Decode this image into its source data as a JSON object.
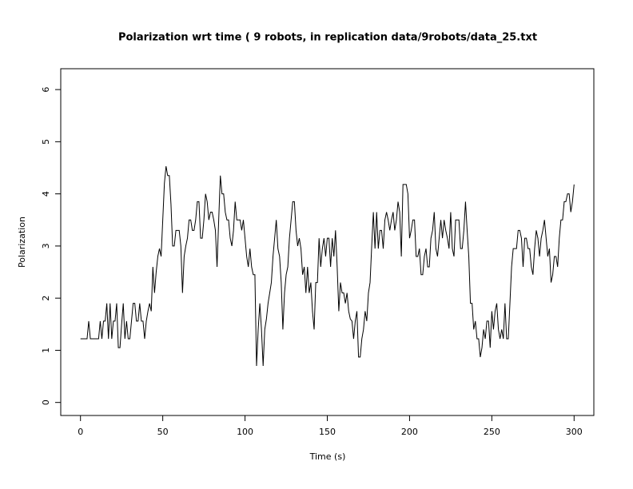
{
  "chart_data": {
    "type": "line",
    "title": "Polarization wrt time ( 9 robots, in replication  data/9robots/data_25.txt",
    "x_label": "Time (s)",
    "y_label": "Polarization",
    "xlim": [
      -12,
      312
    ],
    "ylim": [
      -0.25,
      6.4
    ],
    "xticks": [
      0,
      50,
      100,
      150,
      200,
      250,
      300
    ],
    "yticks": [
      0,
      1,
      2,
      3,
      4,
      5,
      6
    ],
    "grid": false,
    "series": [
      {
        "color": "#000000",
        "x": [
          0,
          1,
          2,
          3,
          4,
          5,
          6,
          7,
          8,
          9,
          10,
          11,
          12,
          13,
          14,
          15,
          16,
          17,
          18,
          19,
          20,
          21,
          22,
          23,
          24,
          25,
          26,
          27,
          28,
          29,
          30,
          31,
          32,
          33,
          34,
          35,
          36,
          37,
          38,
          39,
          40,
          41,
          42,
          43,
          44,
          45,
          46,
          47,
          48,
          49,
          50,
          51,
          52,
          53,
          54,
          55,
          56,
          57,
          58,
          59,
          60,
          61,
          62,
          63,
          64,
          65,
          66,
          67,
          68,
          69,
          70,
          71,
          72,
          73,
          74,
          75,
          76,
          77,
          78,
          79,
          80,
          81,
          82,
          83,
          84,
          85,
          86,
          87,
          88,
          89,
          90,
          91,
          92,
          93,
          94,
          95,
          96,
          97,
          98,
          99,
          100,
          101,
          102,
          103,
          104,
          105,
          106,
          107,
          108,
          109,
          110,
          111,
          112,
          113,
          114,
          115,
          116,
          117,
          118,
          119,
          120,
          121,
          122,
          123,
          124,
          125,
          126,
          127,
          128,
          129,
          130,
          131,
          132,
          133,
          134,
          135,
          136,
          137,
          138,
          139,
          140,
          141,
          142,
          143,
          144,
          145,
          146,
          147,
          148,
          149,
          150,
          151,
          152,
          153,
          154,
          155,
          156,
          157,
          158,
          159,
          160,
          161,
          162,
          163,
          164,
          165,
          166,
          167,
          168,
          169,
          170,
          171,
          172,
          173,
          174,
          175,
          176,
          177,
          178,
          179,
          180,
          181,
          182,
          183,
          184,
          185,
          186,
          187,
          188,
          189,
          190,
          191,
          192,
          193,
          194,
          195,
          196,
          197,
          198,
          199,
          200,
          201,
          202,
          203,
          204,
          205,
          206,
          207,
          208,
          209,
          210,
          211,
          212,
          213,
          214,
          215,
          216,
          217,
          218,
          219,
          220,
          221,
          222,
          223,
          224,
          225,
          226,
          227,
          228,
          229,
          230,
          231,
          232,
          233,
          234,
          235,
          236,
          237,
          238,
          239,
          240,
          241,
          242,
          243,
          244,
          245,
          246,
          247,
          248,
          249,
          250,
          251,
          252,
          253,
          254,
          255,
          256,
          257,
          258,
          259,
          260,
          261,
          262,
          263,
          264,
          265,
          266,
          267,
          268,
          269,
          270,
          271,
          272,
          273,
          274,
          275,
          276,
          277,
          278,
          279,
          280,
          281,
          282,
          283,
          284,
          285,
          286,
          287,
          288,
          289,
          290,
          291,
          292,
          293,
          294,
          295,
          296,
          297,
          298,
          299,
          300
        ],
        "values": [
          1.22,
          1.22,
          1.22,
          1.22,
          1.22,
          1.56,
          1.22,
          1.22,
          1.22,
          1.22,
          1.22,
          1.22,
          1.56,
          1.22,
          1.56,
          1.56,
          1.9,
          1.22,
          1.9,
          1.22,
          1.56,
          1.56,
          1.9,
          1.05,
          1.05,
          1.5,
          1.9,
          1.22,
          1.56,
          1.22,
          1.22,
          1.56,
          1.9,
          1.9,
          1.56,
          1.56,
          1.9,
          1.56,
          1.56,
          1.22,
          1.56,
          1.75,
          1.9,
          1.75,
          2.6,
          2.1,
          2.5,
          2.8,
          2.95,
          2.8,
          3.5,
          4.2,
          4.53,
          4.35,
          4.35,
          3.8,
          3.0,
          3.0,
          3.3,
          3.3,
          3.3,
          3.0,
          2.1,
          2.8,
          3.0,
          3.15,
          3.5,
          3.5,
          3.3,
          3.3,
          3.5,
          3.85,
          3.85,
          3.15,
          3.15,
          3.5,
          4.0,
          3.85,
          3.5,
          3.65,
          3.65,
          3.5,
          3.3,
          2.6,
          3.5,
          4.35,
          4.0,
          4.0,
          3.65,
          3.5,
          3.5,
          3.15,
          3.0,
          3.3,
          3.85,
          3.5,
          3.5,
          3.5,
          3.3,
          3.5,
          3.15,
          2.8,
          2.6,
          2.95,
          2.6,
          2.45,
          2.45,
          0.7,
          1.4,
          1.9,
          1.4,
          0.7,
          1.4,
          1.6,
          1.9,
          2.1,
          2.3,
          2.8,
          3.15,
          3.5,
          2.95,
          2.8,
          2.3,
          1.4,
          2.1,
          2.45,
          2.6,
          3.15,
          3.5,
          3.85,
          3.85,
          3.3,
          3.0,
          3.15,
          2.95,
          2.45,
          2.6,
          2.1,
          2.6,
          2.1,
          2.3,
          1.75,
          1.4,
          2.3,
          2.3,
          3.15,
          2.6,
          2.95,
          3.15,
          2.8,
          3.15,
          3.15,
          2.6,
          3.15,
          2.8,
          3.3,
          2.6,
          1.75,
          2.3,
          2.1,
          2.1,
          1.9,
          2.1,
          1.75,
          1.6,
          1.56,
          1.22,
          1.56,
          1.75,
          0.87,
          0.87,
          1.22,
          1.4,
          1.75,
          1.56,
          2.1,
          2.3,
          3.0,
          3.65,
          2.95,
          3.65,
          2.95,
          3.3,
          3.3,
          2.95,
          3.5,
          3.65,
          3.5,
          3.3,
          3.5,
          3.65,
          3.3,
          3.5,
          3.85,
          3.65,
          2.8,
          4.18,
          4.18,
          4.18,
          4.0,
          3.15,
          3.3,
          3.5,
          3.5,
          2.8,
          2.8,
          2.95,
          2.45,
          2.45,
          2.8,
          2.95,
          2.6,
          2.6,
          3.15,
          3.3,
          3.65,
          2.95,
          2.8,
          3.15,
          3.5,
          3.15,
          3.5,
          3.3,
          3.15,
          2.95,
          3.65,
          2.95,
          2.8,
          3.5,
          3.5,
          3.5,
          2.95,
          2.95,
          3.3,
          3.85,
          3.3,
          2.8,
          1.9,
          1.9,
          1.4,
          1.56,
          1.22,
          1.22,
          0.87,
          1.05,
          1.4,
          1.22,
          1.56,
          1.56,
          1.05,
          1.75,
          1.4,
          1.75,
          1.9,
          1.4,
          1.22,
          1.4,
          1.22,
          1.9,
          1.22,
          1.22,
          1.9,
          2.6,
          2.95,
          2.95,
          2.95,
          3.3,
          3.3,
          3.15,
          2.6,
          3.15,
          3.15,
          2.95,
          2.95,
          2.6,
          2.45,
          2.95,
          3.3,
          3.15,
          2.8,
          3.15,
          3.3,
          3.5,
          3.15,
          2.8,
          2.95,
          2.3,
          2.45,
          2.8,
          2.8,
          2.6,
          3.15,
          3.5,
          3.5,
          3.85,
          3.85,
          4.0,
          4.0,
          3.65,
          3.85,
          4.18
        ]
      }
    ]
  }
}
